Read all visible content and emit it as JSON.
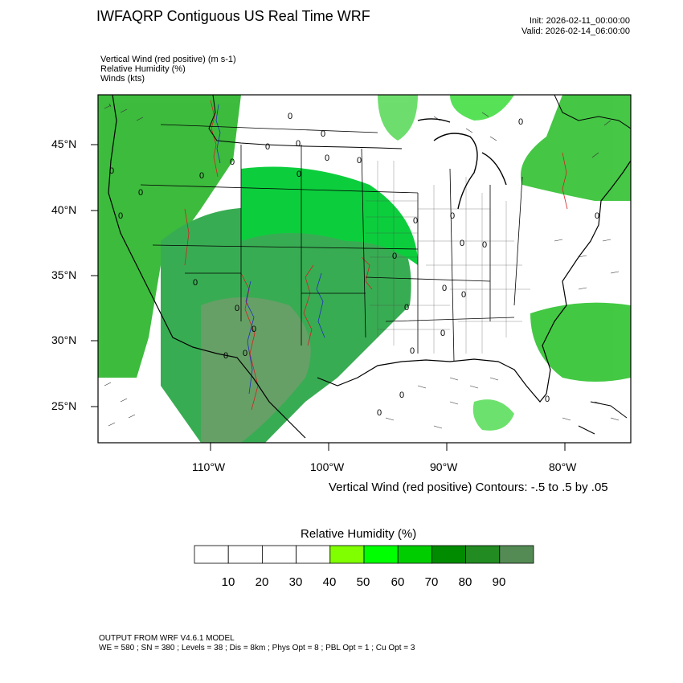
{
  "header": {
    "title": "IWFAQRP Contiguous US Real Time WRF",
    "init": "Init: 2026-02-11_00:00:00",
    "valid": "Valid: 2026-02-14_06:00:00"
  },
  "fields": [
    "Vertical Wind (red positive)   (m s-1)",
    "Relative Humidity   (%)",
    "Winds   (kts)"
  ],
  "map": {
    "lat_labels": [
      "45°N",
      "40°N",
      "35°N",
      "30°N",
      "25°N"
    ],
    "lon_labels": [
      "110°W",
      "100°W",
      "90°W",
      "80°W"
    ],
    "contour_zero_label": "0"
  },
  "contour_note": "Vertical Wind (red positive) Contours: -.5 to .5 by .05",
  "colorbar": {
    "title": "Relative Humidity  (%)",
    "ticks": [
      "10",
      "20",
      "30",
      "40",
      "50",
      "60",
      "70",
      "80",
      "90"
    ],
    "colors": [
      "#ffffff",
      "#ffffff",
      "#ffffff",
      "#ffffff",
      "#7fff00",
      "#00ff00",
      "#00cd00",
      "#008b00",
      "#228b22",
      "#548b54"
    ]
  },
  "footer": {
    "line1": "OUTPUT FROM WRF V4.6.1 MODEL",
    "line2": "WE = 580 ; SN = 380 ; Levels = 38 ; Dis = 8km ; Phys Opt = 8 ; PBL Opt = 1 ; Cu Opt = 3"
  }
}
